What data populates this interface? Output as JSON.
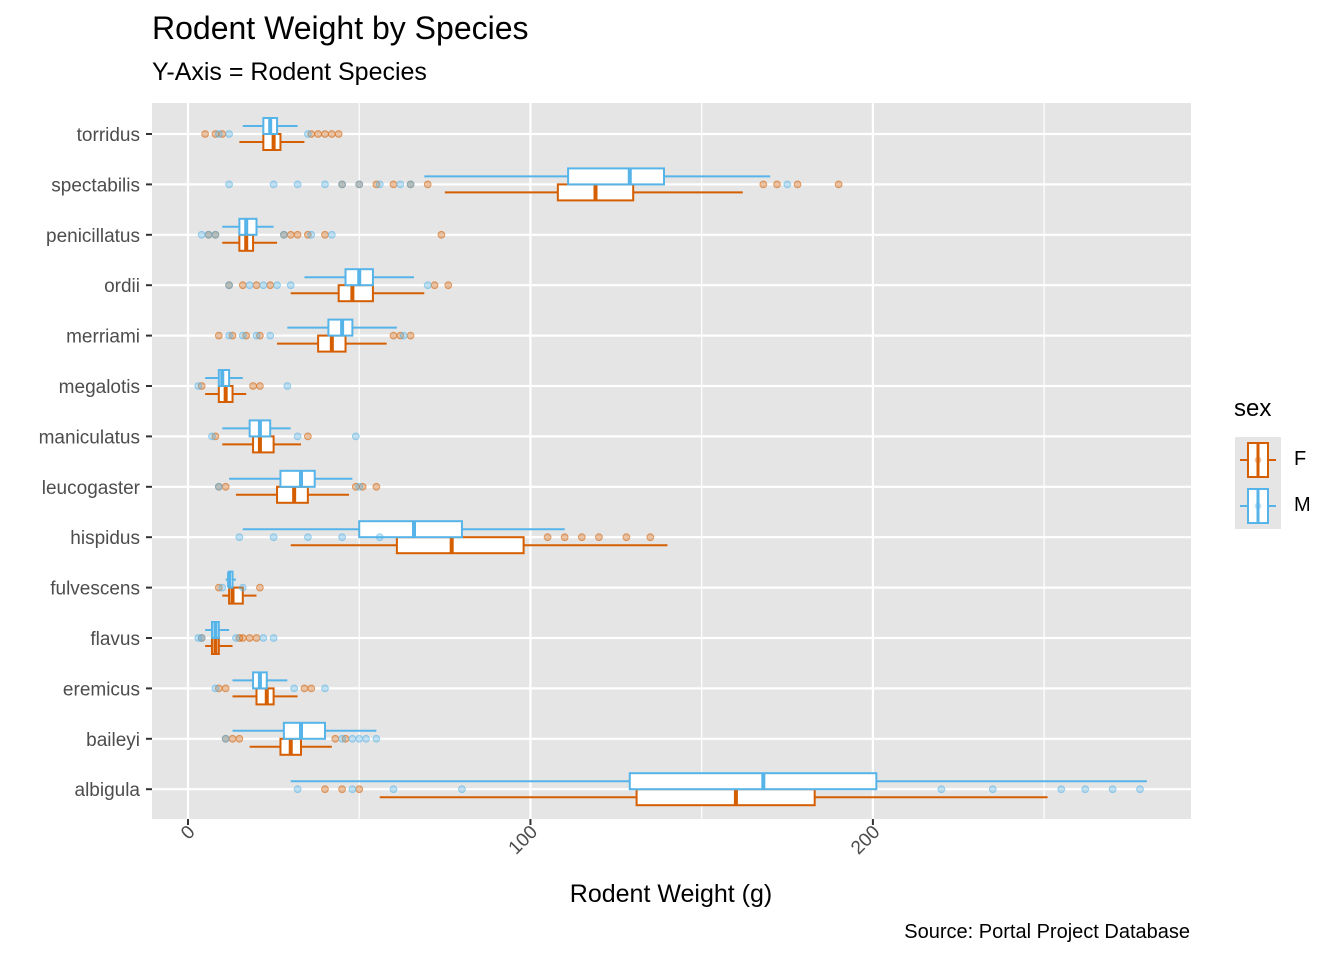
{
  "colors": {
    "female": "#D55E00",
    "male": "#56B4E9",
    "panel": "#E5E5E5",
    "grid": "#FFFFFF"
  },
  "chart_data": {
    "type": "boxplot",
    "title": "Rodent Weight by Species",
    "subtitle": "Y-Axis = Rodent Species",
    "xlabel": "Rodent Weight (g)",
    "ylabel": "",
    "caption": "Source: Portal Project Database",
    "xlim": [
      -8,
      294
    ],
    "xticks": [
      0,
      100,
      200
    ],
    "xtick_labels": [
      "0",
      "100",
      "200"
    ],
    "legend": {
      "title": "sex",
      "position": "right",
      "entries": [
        "F",
        "M"
      ]
    },
    "categories": [
      "torridus",
      "spectabilis",
      "penicillatus",
      "ordii",
      "merriami",
      "megalotis",
      "maniculatus",
      "leucogaster",
      "hispidus",
      "fulvescens",
      "flavus",
      "eremicus",
      "baileyi",
      "albigula"
    ],
    "series": [
      {
        "name": "F",
        "boxes": [
          {
            "species": "torridus",
            "min": 15,
            "q1": 22,
            "median": 25,
            "q3": 27,
            "max": 34,
            "outliers": [
              5,
              8,
              10,
              36,
              38,
              40,
              42,
              44
            ]
          },
          {
            "species": "spectabilis",
            "min": 75,
            "q1": 108,
            "median": 119,
            "q3": 130,
            "max": 162,
            "outliers": [
              45,
              50,
              55,
              60,
              65,
              70,
              168,
              172,
              178,
              190
            ]
          },
          {
            "species": "penicillatus",
            "min": 10,
            "q1": 15,
            "median": 17,
            "q3": 19,
            "max": 26,
            "outliers": [
              6,
              8,
              28,
              30,
              32,
              35,
              40,
              74
            ]
          },
          {
            "species": "ordii",
            "min": 30,
            "q1": 44,
            "median": 48,
            "q3": 54,
            "max": 69,
            "outliers": [
              12,
              16,
              20,
              24,
              72,
              76
            ]
          },
          {
            "species": "merriami",
            "min": 26,
            "q1": 38,
            "median": 42,
            "q3": 46,
            "max": 58,
            "outliers": [
              9,
              13,
              17,
              21,
              60,
              62,
              65
            ]
          },
          {
            "species": "megalotis",
            "min": 5,
            "q1": 9,
            "median": 11,
            "q3": 13,
            "max": 17,
            "outliers": [
              4,
              19,
              21
            ]
          },
          {
            "species": "maniculatus",
            "min": 10,
            "q1": 19,
            "median": 21,
            "q3": 25,
            "max": 33,
            "outliers": [
              8,
              35
            ]
          },
          {
            "species": "leucogaster",
            "min": 14,
            "q1": 26,
            "median": 31,
            "q3": 35,
            "max": 47,
            "outliers": [
              9,
              11,
              49,
              51,
              55
            ]
          },
          {
            "species": "hispidus",
            "min": 30,
            "q1": 61,
            "median": 77,
            "q3": 98,
            "max": 140,
            "outliers": [
              105,
              110,
              115,
              120,
              128,
              135
            ]
          },
          {
            "species": "fulvescens",
            "min": 10,
            "q1": 12,
            "median": 13,
            "q3": 16,
            "max": 20,
            "outliers": [
              9,
              21
            ]
          },
          {
            "species": "flavus",
            "min": 5,
            "q1": 7,
            "median": 8,
            "q3": 9,
            "max": 13,
            "outliers": [
              4,
              15,
              16,
              18,
              20
            ]
          },
          {
            "species": "eremicus",
            "min": 13,
            "q1": 20,
            "median": 23,
            "q3": 25,
            "max": 32,
            "outliers": [
              9,
              11,
              34,
              36
            ]
          },
          {
            "species": "baileyi",
            "min": 18,
            "q1": 27,
            "median": 30,
            "q3": 33,
            "max": 42,
            "outliers": [
              11,
              13,
              15,
              43,
              46
            ]
          },
          {
            "species": "albigula",
            "min": 56,
            "q1": 131,
            "median": 160,
            "q3": 183,
            "max": 251,
            "outliers": [
              40,
              45,
              50
            ]
          }
        ]
      },
      {
        "name": "M",
        "boxes": [
          {
            "species": "torridus",
            "min": 16,
            "q1": 22,
            "median": 24,
            "q3": 26,
            "max": 32,
            "outliers": [
              9,
              12,
              35
            ]
          },
          {
            "species": "spectabilis",
            "min": 69,
            "q1": 111,
            "median": 129,
            "q3": 139,
            "max": 170,
            "outliers": [
              12,
              25,
              32,
              40,
              45,
              50,
              56,
              62,
              65,
              175
            ]
          },
          {
            "species": "penicillatus",
            "min": 10,
            "q1": 15,
            "median": 17,
            "q3": 20,
            "max": 25,
            "outliers": [
              4,
              6,
              8,
              28,
              36,
              42
            ]
          },
          {
            "species": "ordii",
            "min": 34,
            "q1": 46,
            "median": 50,
            "q3": 54,
            "max": 66,
            "outliers": [
              12,
              18,
              22,
              26,
              30,
              70
            ]
          },
          {
            "species": "merriami",
            "min": 29,
            "q1": 41,
            "median": 45,
            "q3": 48,
            "max": 61,
            "outliers": [
              12,
              16,
              20,
              24,
              63
            ]
          },
          {
            "species": "megalotis",
            "min": 5,
            "q1": 9,
            "median": 10,
            "q3": 12,
            "max": 16,
            "outliers": [
              3,
              29
            ]
          },
          {
            "species": "maniculatus",
            "min": 10,
            "q1": 18,
            "median": 21,
            "q3": 24,
            "max": 30,
            "outliers": [
              7,
              32,
              49
            ]
          },
          {
            "species": "leucogaster",
            "min": 12,
            "q1": 27,
            "median": 33,
            "q3": 37,
            "max": 48,
            "outliers": [
              9,
              50
            ]
          },
          {
            "species": "hispidus",
            "min": 16,
            "q1": 50,
            "median": 66,
            "q3": 80,
            "max": 110,
            "outliers": [
              15,
              25,
              35,
              45,
              56
            ]
          },
          {
            "species": "fulvescens",
            "min": 11,
            "q1": 12,
            "median": 12,
            "q3": 13,
            "max": 14,
            "outliers": [
              10,
              16
            ]
          },
          {
            "species": "flavus",
            "min": 5,
            "q1": 7,
            "median": 8,
            "q3": 9,
            "max": 12,
            "outliers": [
              3,
              4,
              14,
              22,
              25
            ]
          },
          {
            "species": "eremicus",
            "min": 13,
            "q1": 19,
            "median": 21,
            "q3": 23,
            "max": 29,
            "outliers": [
              8,
              31,
              40
            ]
          },
          {
            "species": "baileyi",
            "min": 13,
            "q1": 28,
            "median": 33,
            "q3": 40,
            "max": 55,
            "outliers": [
              11,
              45,
              48,
              50,
              52,
              55
            ]
          },
          {
            "species": "albigula",
            "min": 30,
            "q1": 129,
            "median": 168,
            "q3": 201,
            "max": 280,
            "outliers": [
              32,
              48,
              60,
              80,
              220,
              235,
              255,
              262,
              270,
              278
            ]
          }
        ]
      }
    ]
  }
}
